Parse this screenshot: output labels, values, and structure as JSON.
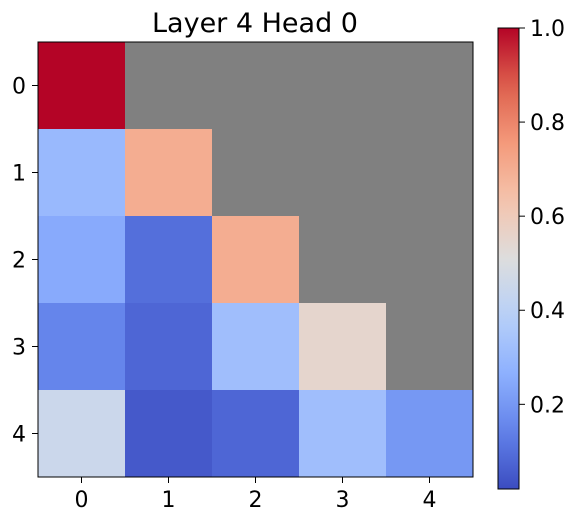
{
  "chart_data": {
    "type": "heatmap",
    "title": "Layer 4 Head 0",
    "x": [
      0,
      1,
      2,
      3,
      4
    ],
    "y": [
      0,
      1,
      2,
      3,
      4
    ],
    "values": [
      [
        1.0,
        null,
        null,
        null,
        null
      ],
      [
        0.3,
        0.7,
        null,
        null,
        null
      ],
      [
        0.25,
        0.1,
        0.7,
        null,
        null
      ],
      [
        0.15,
        0.08,
        0.32,
        0.55,
        null
      ],
      [
        0.45,
        0.05,
        0.08,
        0.32,
        0.2
      ]
    ],
    "masked_color": "#808080",
    "colormap": "coolwarm",
    "colorbar": {
      "min": 0.02,
      "max": 1.0,
      "ticks": [
        0.2,
        0.4,
        0.6,
        0.8,
        1.0
      ],
      "tick_labels": [
        "0.2",
        "0.4",
        "0.6",
        "0.8",
        "1.0"
      ]
    },
    "x_tick_labels": [
      "0",
      "1",
      "2",
      "3",
      "4"
    ],
    "y_tick_labels": [
      "0",
      "1",
      "2",
      "3",
      "4"
    ]
  }
}
